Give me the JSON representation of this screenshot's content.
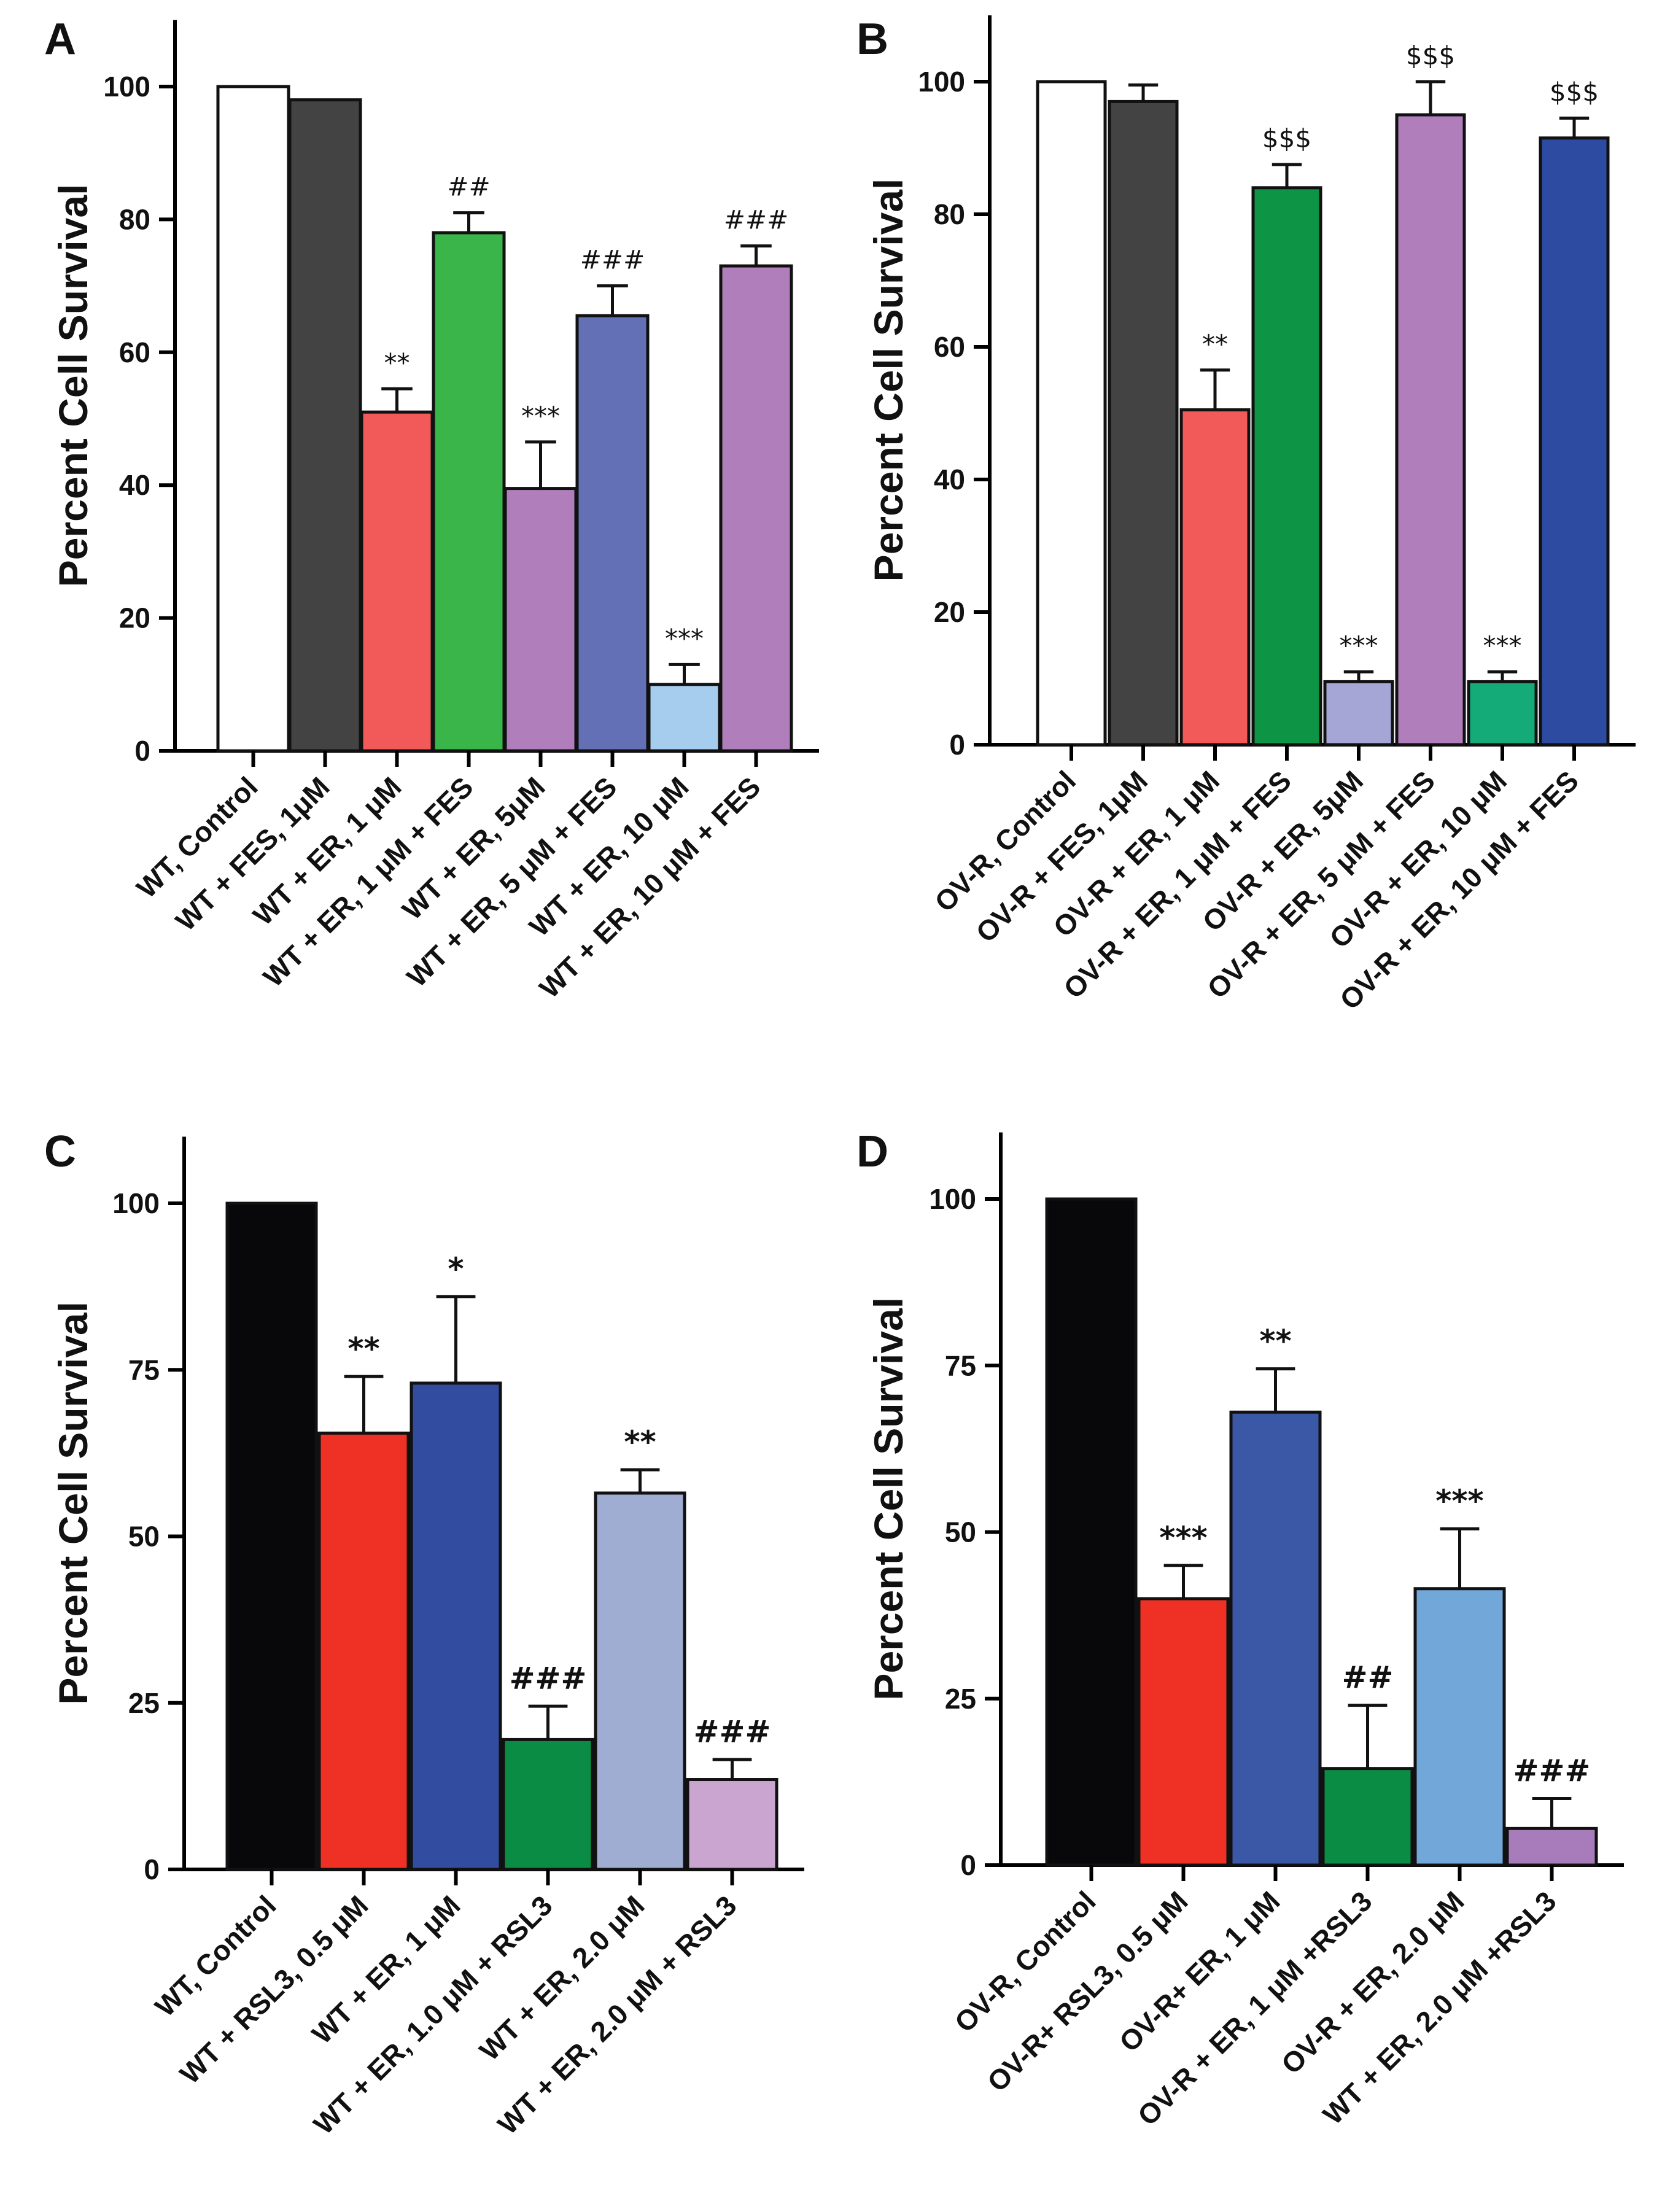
{
  "chart_data": [
    {
      "panel": "A",
      "type": "bar",
      "ylabel": "Percent Cell Survival",
      "ylim": [
        0,
        110
      ],
      "yticks": [
        0,
        20,
        40,
        60,
        80,
        100
      ],
      "categories": [
        "WT, Control",
        "WT + FES, 1μM",
        "WT + ER, 1 μM",
        "WT + ER, 1 μM + FES",
        "WT + ER, 5μM",
        "WT + ER, 5 μM + FES",
        "WT + ER, 10 μM",
        "WT + ER, 10 μM + FES"
      ],
      "values": [
        100,
        98,
        51,
        78,
        39.5,
        65.5,
        10,
        73
      ],
      "errors": [
        0,
        0,
        3.5,
        3,
        7,
        4.5,
        3,
        3
      ],
      "annotations": [
        "",
        "",
        "**",
        "##",
        "***",
        "###",
        "***",
        "###"
      ],
      "colors": [
        "#ffffff",
        "#434343",
        "#f25a5a",
        "#3ab54a",
        "#b07fbb",
        "#6470b6",
        "#a6cdee",
        "#b07fbb"
      ]
    },
    {
      "panel": "B",
      "type": "bar",
      "ylabel": "Percent Cell Survival",
      "ylim": [
        0,
        110
      ],
      "yticks": [
        0,
        20,
        40,
        60,
        80,
        100
      ],
      "categories": [
        "OV-R, Control",
        "OV-R + FES, 1μM",
        "OV-R + ER, 1 μM",
        "OV-R + ER, 1 μM + FES",
        "OV-R + ER, 5μM",
        "OV-R + ER, 5 μM + FES",
        "OV-R + ER, 10 μM",
        "OV-R + ER, 10 μM + FES"
      ],
      "values": [
        100,
        97,
        50.5,
        84,
        9.5,
        95,
        9.5,
        91.5
      ],
      "errors": [
        0,
        2.5,
        6,
        3.5,
        1.5,
        5,
        1.5,
        3
      ],
      "annotations": [
        "",
        "",
        "**",
        "$$$",
        "***",
        "$$$",
        "***",
        "$$$"
      ],
      "colors": [
        "#ffffff",
        "#434343",
        "#f25a5a",
        "#0d9444",
        "#a6a6d6",
        "#b07fbb",
        "#15ab78",
        "#2d4ca1"
      ]
    },
    {
      "panel": "C",
      "type": "bar",
      "ylabel": "Percent Cell Survival",
      "ylim": [
        0,
        110
      ],
      "yticks": [
        0,
        25,
        50,
        75,
        100
      ],
      "categories": [
        "WT, Control",
        "WT + RSL3, 0.5 μM",
        "WT + ER, 1 μM",
        "WT + ER, 1.0 μM + RSL3",
        "WT + ER, 2.0 μM",
        "WT + ER, 2.0 μM + RSL3"
      ],
      "values": [
        100,
        65.5,
        73,
        19.5,
        56.5,
        13.5
      ],
      "errors": [
        0,
        8.5,
        13,
        5,
        3.5,
        3
      ],
      "annotations": [
        "",
        "**",
        "*",
        "###",
        "**",
        "###"
      ],
      "colors": [
        "#08080a",
        "#ee3124",
        "#324c9f",
        "#0b8c45",
        "#9fadd3",
        "#c9a5d0"
      ]
    },
    {
      "panel": "D",
      "type": "bar",
      "ylabel": "Percent Cell Survival",
      "ylim": [
        0,
        110
      ],
      "yticks": [
        0,
        25,
        50,
        75,
        100
      ],
      "categories": [
        "OV-R, Control",
        "OV-R+ RSL3, 0.5 μM",
        "OV-R+ ER, 1 μM",
        "OV-R + ER, 1 μM +RSL3",
        "OV-R + ER, 2.0 μM",
        "WT + ER, 2.0 μM +RSL3"
      ],
      "values": [
        100,
        40,
        68,
        14.5,
        41.5,
        5.5
      ],
      "errors": [
        0,
        5,
        6.5,
        9.5,
        9,
        4.5
      ],
      "annotations": [
        "",
        "***",
        "**",
        "##",
        "***",
        "###"
      ],
      "colors": [
        "#08080a",
        "#ee3124",
        "#3b58a7",
        "#0b8c45",
        "#72a7d9",
        "#a87cbb"
      ]
    }
  ]
}
